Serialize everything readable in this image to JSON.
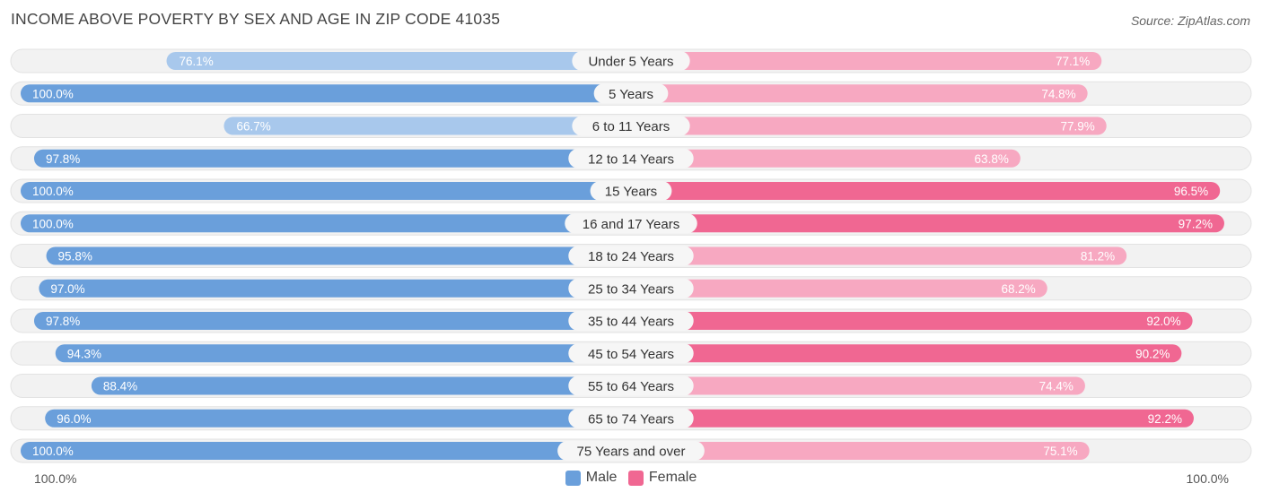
{
  "title": "INCOME ABOVE POVERTY BY SEX AND AGE IN ZIP CODE 41035",
  "source": "Source: ZipAtlas.com",
  "axis": {
    "left_label": "100.0%",
    "right_label": "100.0%"
  },
  "legend": {
    "male_label": "Male",
    "female_label": "Female"
  },
  "colors": {
    "male_strong": "#6a9fdb",
    "male_light": "#a8c8ec",
    "female_strong": "#f06792",
    "female_light": "#f7a8c1",
    "track": "#efefef"
  },
  "chart_data": {
    "type": "bar",
    "orientation": "horizontal-diverging",
    "categories": [
      "Under 5 Years",
      "5 Years",
      "6 to 11 Years",
      "12 to 14 Years",
      "15 Years",
      "16 and 17 Years",
      "18 to 24 Years",
      "25 to 34 Years",
      "35 to 44 Years",
      "45 to 54 Years",
      "55 to 64 Years",
      "65 to 74 Years",
      "75 Years and over"
    ],
    "series": [
      {
        "name": "Male",
        "values": [
          76.1,
          100.0,
          66.7,
          97.8,
          100.0,
          100.0,
          95.8,
          97.0,
          97.8,
          94.3,
          88.4,
          96.0,
          100.0
        ],
        "labels": [
          "76.1%",
          "100.0%",
          "66.7%",
          "97.8%",
          "100.0%",
          "100.0%",
          "95.8%",
          "97.0%",
          "97.8%",
          "94.3%",
          "88.4%",
          "96.0%",
          "100.0%"
        ]
      },
      {
        "name": "Female",
        "values": [
          77.1,
          74.8,
          77.9,
          63.8,
          96.5,
          97.2,
          81.2,
          68.2,
          92.0,
          90.2,
          74.4,
          92.2,
          75.1
        ],
        "labels": [
          "77.1%",
          "74.8%",
          "77.9%",
          "63.8%",
          "96.5%",
          "97.2%",
          "81.2%",
          "68.2%",
          "92.0%",
          "90.2%",
          "74.4%",
          "92.2%",
          "75.1%"
        ]
      }
    ],
    "xlim": [
      0,
      100
    ],
    "legend_position": "bottom-center"
  }
}
